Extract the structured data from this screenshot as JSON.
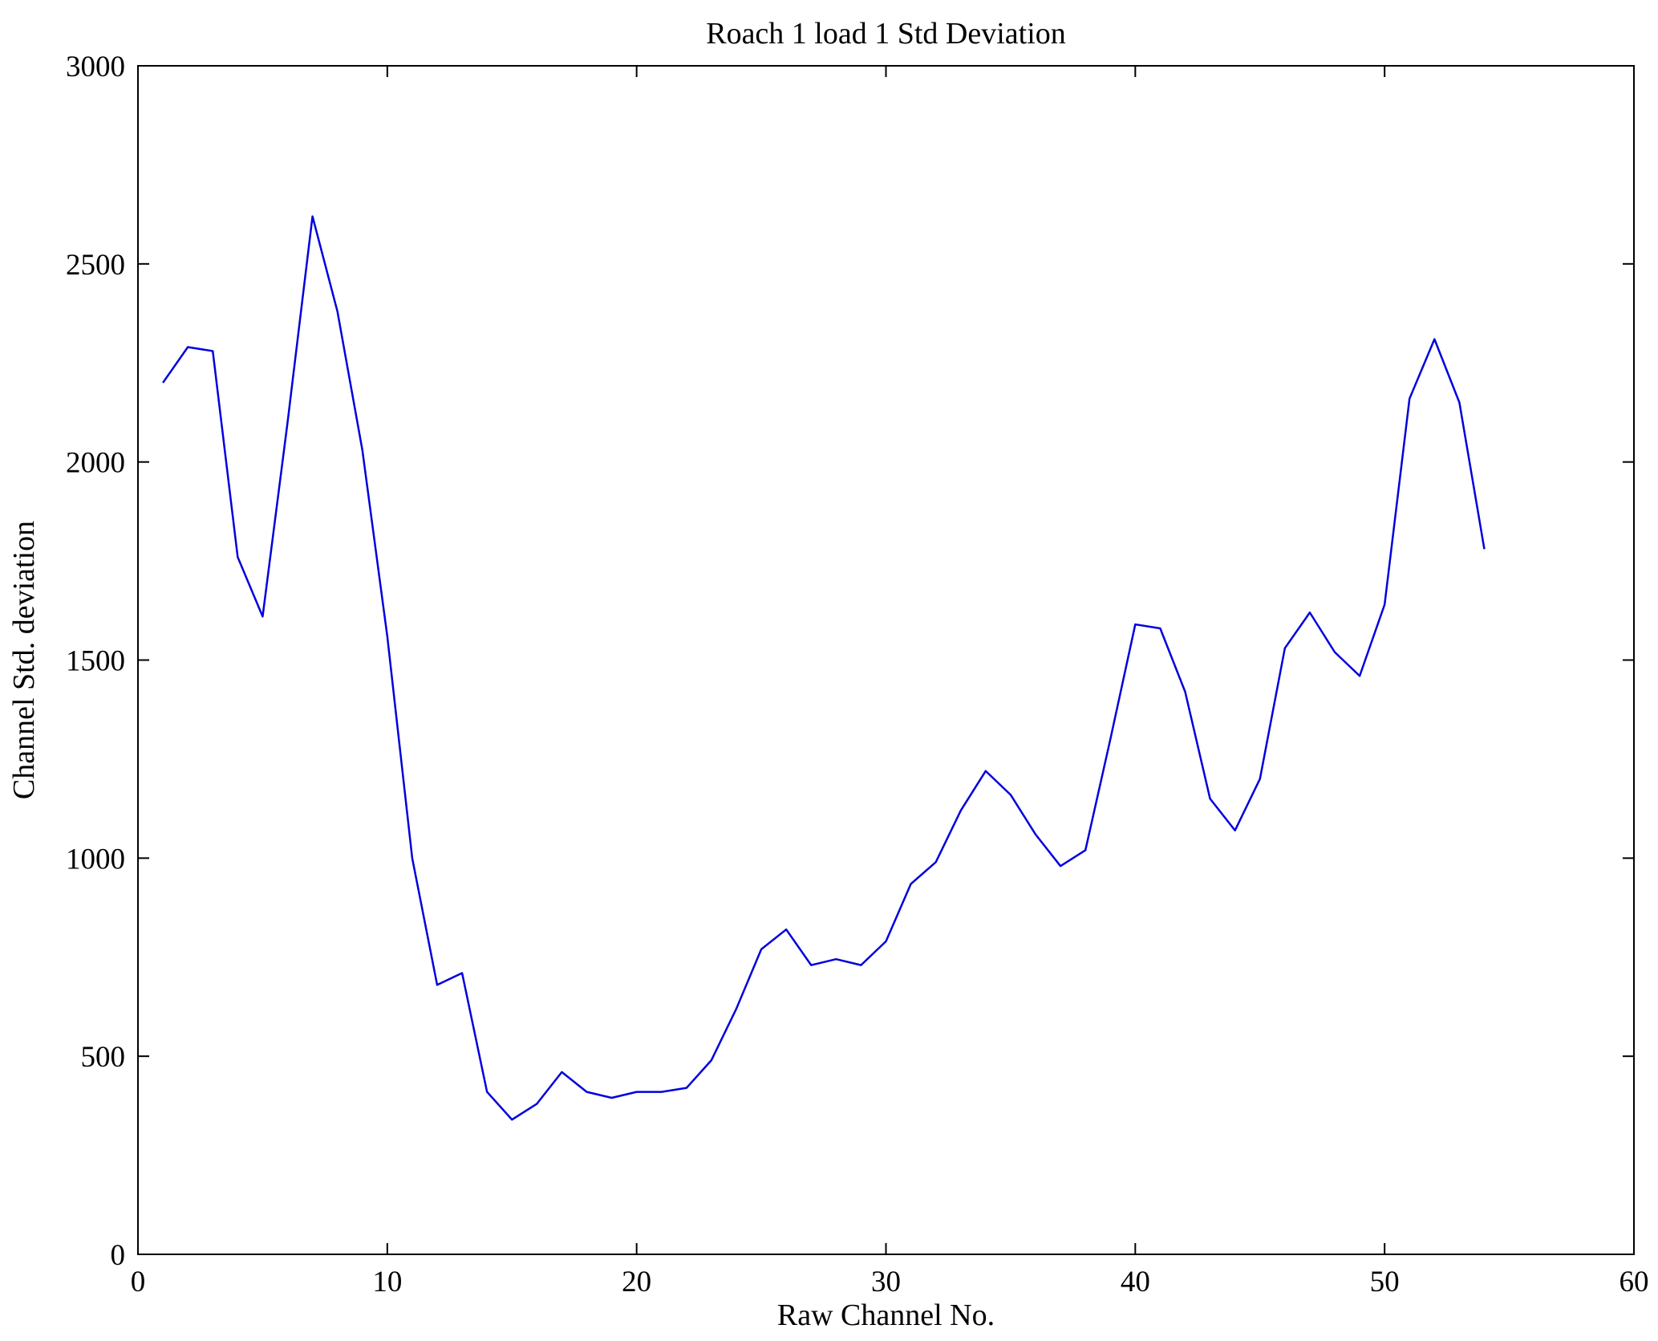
{
  "figure": {
    "background": "#ffffff",
    "box_color": "#000000"
  },
  "chart_data": {
    "type": "line",
    "title": "Roach 1 load 1 Std Deviation",
    "xlabel": "Raw Channel No.",
    "ylabel": "Channel Std. deviation",
    "xlim": [
      0,
      60
    ],
    "ylim": [
      0,
      3000
    ],
    "xticks": [
      0,
      10,
      20,
      30,
      40,
      50,
      60
    ],
    "yticks": [
      0,
      500,
      1000,
      1500,
      2000,
      2500,
      3000
    ],
    "grid": false,
    "legend": "none",
    "line_color": "#0000dd",
    "line_width": 2.5,
    "x": [
      1,
      2,
      3,
      4,
      5,
      6,
      7,
      8,
      9,
      10,
      11,
      12,
      13,
      14,
      15,
      16,
      17,
      18,
      19,
      20,
      21,
      22,
      23,
      24,
      25,
      26,
      27,
      28,
      29,
      30,
      31,
      32,
      33,
      34,
      35,
      36,
      37,
      38,
      39,
      40,
      41,
      42,
      43,
      44,
      45,
      46,
      47,
      48,
      49,
      50,
      51,
      52,
      53,
      54
    ],
    "values": [
      2200,
      2290,
      2280,
      1760,
      1610,
      2100,
      2620,
      2380,
      2030,
      1560,
      1000,
      680,
      710,
      410,
      340,
      380,
      460,
      410,
      395,
      410,
      410,
      420,
      490,
      620,
      770,
      820,
      730,
      745,
      730,
      790,
      935,
      990,
      1120,
      1220,
      1160,
      1060,
      980,
      1020,
      1300,
      1590,
      1580,
      1420,
      1150,
      1070,
      1200,
      1530,
      1620,
      1520,
      1460,
      1640,
      2160,
      2310,
      2150,
      1780
    ]
  }
}
